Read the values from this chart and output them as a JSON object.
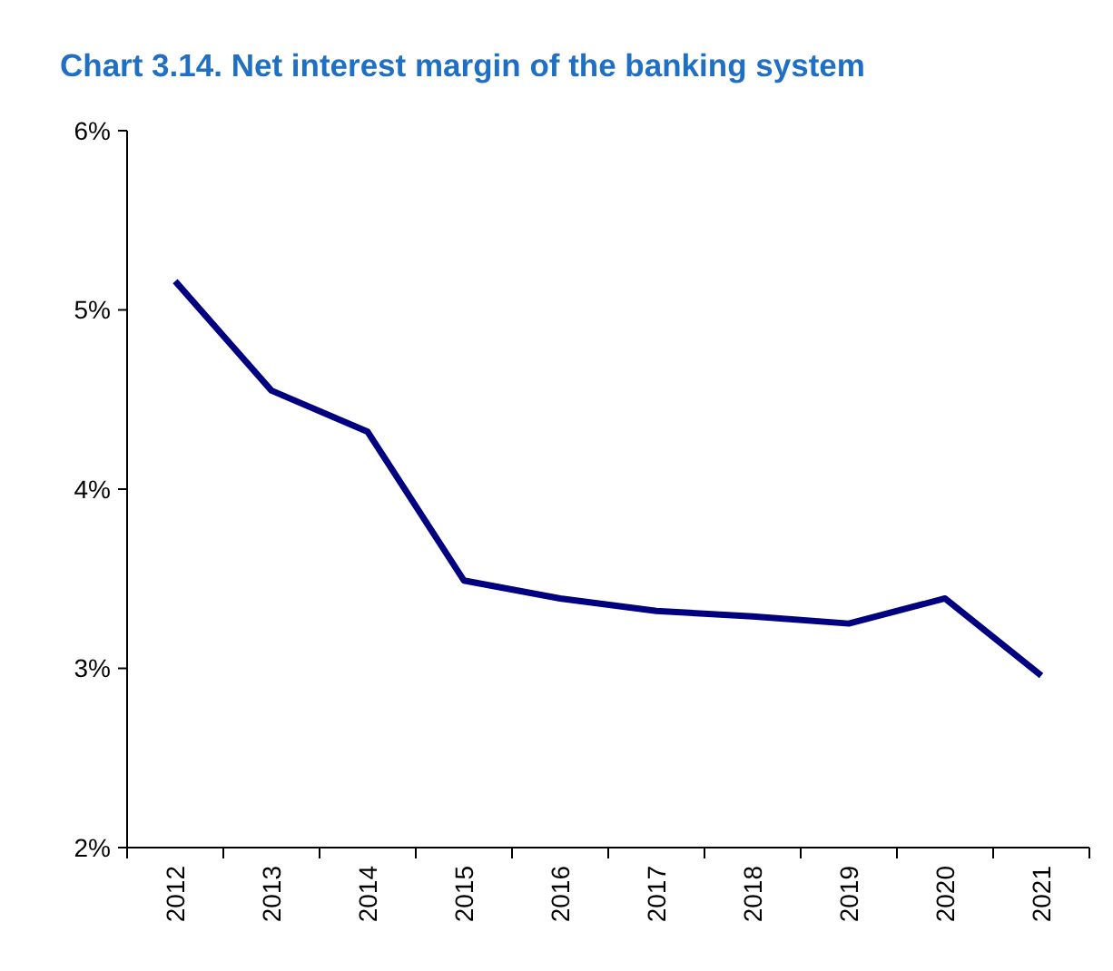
{
  "chart_data": {
    "type": "line",
    "title": "Chart 3.14. Net interest margin of the banking system",
    "categories": [
      "2012",
      "2013",
      "2014",
      "2015",
      "2016",
      "2017",
      "2018",
      "2019",
      "2020",
      "2021"
    ],
    "series": [
      {
        "color": "#000080",
        "values": [
          5.16,
          4.55,
          4.32,
          3.49,
          3.39,
          3.32,
          3.29,
          3.25,
          3.39,
          2.96
        ]
      }
    ],
    "ylim": [
      2,
      6
    ],
    "yticks": [
      {
        "value": 2,
        "label": "2%"
      },
      {
        "value": 3,
        "label": "3%"
      },
      {
        "value": 4,
        "label": "4%"
      },
      {
        "value": 5,
        "label": "5%"
      },
      {
        "value": 6,
        "label": "6%"
      }
    ],
    "marker": "none",
    "line_style": "solid"
  }
}
